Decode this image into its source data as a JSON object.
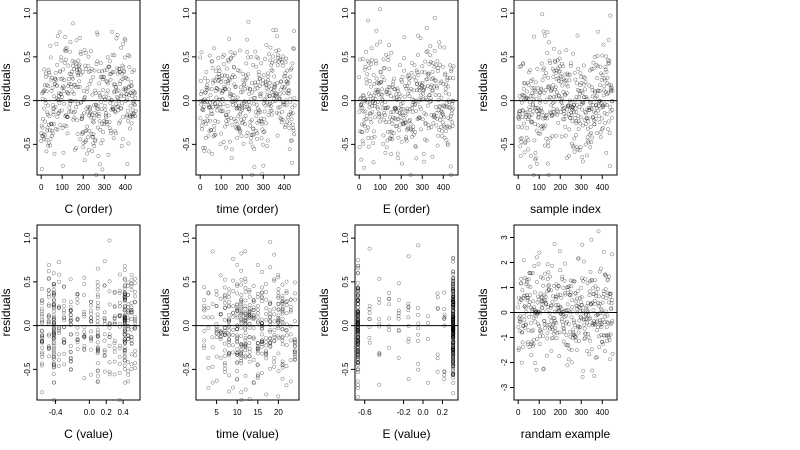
{
  "chart_data": [
    {
      "type": "scatter",
      "xlabel": "C (order)",
      "ylabel": "residuals",
      "xlim": [
        -20,
        470
      ],
      "ylim": [
        -0.85,
        1.15
      ],
      "xticks": [
        0,
        100,
        200,
        300,
        400
      ],
      "xtick_labels": [
        "0",
        "100",
        "200",
        "300",
        "400"
      ],
      "yticks": [
        -0.5,
        0.0,
        0.5,
        1.0
      ],
      "ytick_labels": [
        "-0.5",
        "0.0",
        "0.5",
        "1.0"
      ],
      "hline": 0,
      "points": {
        "kind": "order",
        "n": 450,
        "sd": 0.3,
        "seed": 11
      }
    },
    {
      "type": "scatter",
      "xlabel": "time (order)",
      "ylabel": "residuals",
      "xlim": [
        -20,
        470
      ],
      "ylim": [
        -0.85,
        1.15
      ],
      "xticks": [
        0,
        100,
        200,
        300,
        400
      ],
      "xtick_labels": [
        "0",
        "100",
        "200",
        "300",
        "400"
      ],
      "yticks": [
        -0.5,
        0.0,
        0.5,
        1.0
      ],
      "ytick_labels": [
        "-0.5",
        "0.0",
        "0.5",
        "1.0"
      ],
      "hline": 0,
      "points": {
        "kind": "order",
        "n": 450,
        "sd": 0.3,
        "seed": 23
      }
    },
    {
      "type": "scatter",
      "xlabel": "E (order)",
      "ylabel": "residuals",
      "xlim": [
        -20,
        470
      ],
      "ylim": [
        -0.85,
        1.15
      ],
      "xticks": [
        0,
        100,
        200,
        300,
        400
      ],
      "xtick_labels": [
        "0",
        "100",
        "200",
        "300",
        "400"
      ],
      "yticks": [
        -0.5,
        0.0,
        0.5,
        1.0
      ],
      "ytick_labels": [
        "-0.5",
        "0.0",
        "0.5",
        "1.0"
      ],
      "hline": 0,
      "points": {
        "kind": "order",
        "n": 450,
        "sd": 0.3,
        "seed": 37
      }
    },
    {
      "type": "scatter",
      "xlabel": "sample index",
      "ylabel": "residuals",
      "xlim": [
        -20,
        470
      ],
      "ylim": [
        -0.85,
        1.15
      ],
      "xticks": [
        0,
        100,
        200,
        300,
        400
      ],
      "xtick_labels": [
        "0",
        "100",
        "200",
        "300",
        "400"
      ],
      "yticks": [
        -0.5,
        0.0,
        0.5,
        1.0
      ],
      "ytick_labels": [
        "-0.5",
        "0.0",
        "0.5",
        "1.0"
      ],
      "hline": 0,
      "points": {
        "kind": "order",
        "n": 450,
        "sd": 0.3,
        "seed": 41
      }
    },
    {
      "type": "scatter",
      "xlabel": "C (value)",
      "ylabel": "residuals",
      "xlim": [
        -0.62,
        0.6
      ],
      "ylim": [
        -0.85,
        1.15
      ],
      "xticks": [
        -0.4,
        0.0,
        0.2,
        0.4
      ],
      "xtick_labels": [
        "-0.4",
        "0.0",
        "0.2",
        "0.4"
      ],
      "yticks": [
        -0.5,
        0.0,
        0.5,
        1.0
      ],
      "ytick_labels": [
        "-0.5",
        "0.0",
        "0.5",
        "1.0"
      ],
      "hline": 0,
      "points": {
        "kind": "value",
        "n": 450,
        "sd": 0.3,
        "seed": 53,
        "x_values": [
          -0.56,
          -0.48,
          -0.42,
          -0.36,
          -0.3,
          -0.22,
          -0.14,
          -0.06,
          0.02,
          0.1,
          0.18,
          0.24,
          0.3,
          0.36,
          0.42,
          0.46,
          0.5,
          0.54
        ],
        "x_weights": [
          4,
          3,
          12,
          3,
          4,
          3,
          3,
          4,
          4,
          4,
          3,
          3,
          3,
          4,
          12,
          3,
          4,
          3
        ]
      }
    },
    {
      "type": "scatter",
      "xlabel": "time (value)",
      "ylabel": "residuals",
      "xlim": [
        0,
        25
      ],
      "ylim": [
        -0.85,
        1.15
      ],
      "xticks": [
        5,
        10,
        15,
        20
      ],
      "xtick_labels": [
        "5",
        "10",
        "15",
        "20"
      ],
      "yticks": [
        -0.5,
        0.0,
        0.5,
        1.0
      ],
      "ytick_labels": [
        "-0.5",
        "0.0",
        "0.5",
        "1.0"
      ],
      "hline": 0,
      "points": {
        "kind": "value",
        "n": 450,
        "sd": 0.3,
        "seed": 67,
        "x_values": [
          2,
          3,
          4,
          5,
          6,
          7,
          8,
          9,
          10,
          11,
          12,
          13,
          14,
          15,
          16,
          17,
          18,
          19,
          20,
          21,
          22,
          23,
          24
        ],
        "x_weights": [
          2,
          3,
          2,
          3,
          4,
          5,
          6,
          5,
          8,
          10,
          8,
          5,
          4,
          5,
          4,
          3,
          4,
          3,
          4,
          5,
          3,
          3,
          3
        ]
      }
    },
    {
      "type": "scatter",
      "xlabel": "E (value)",
      "ylabel": "residuals",
      "xlim": [
        -0.7,
        0.36
      ],
      "ylim": [
        -0.85,
        1.15
      ],
      "xticks": [
        -0.6,
        -0.2,
        0.0,
        0.2
      ],
      "xtick_labels": [
        "-0.6",
        "-0.2",
        "0.0",
        "0.2"
      ],
      "yticks": [
        -0.5,
        0.0,
        0.5,
        1.0
      ],
      "ytick_labels": [
        "-0.5",
        "0.0",
        "0.5",
        "1.0"
      ],
      "hline": 0,
      "points": {
        "kind": "value",
        "n": 450,
        "sd": 0.3,
        "seed": 79,
        "x_values": [
          -0.67,
          -0.55,
          -0.45,
          -0.35,
          -0.25,
          -0.15,
          -0.05,
          0.05,
          0.15,
          0.22,
          0.31
        ],
        "x_weights": [
          30,
          2,
          2,
          2,
          2,
          2,
          2,
          2,
          2,
          3,
          55
        ]
      }
    },
    {
      "type": "scatter",
      "xlabel": "randam example",
      "ylabel": "residuals",
      "xlim": [
        -20,
        470
      ],
      "ylim": [
        -3.5,
        3.5
      ],
      "xticks": [
        0,
        100,
        200,
        300,
        400
      ],
      "xtick_labels": [
        "0",
        "100",
        "200",
        "300",
        "400"
      ],
      "yticks": [
        -3,
        -2,
        -1,
        0,
        1,
        2,
        3
      ],
      "ytick_labels": [
        "-3",
        "-2",
        "-1",
        "0",
        "1",
        "2",
        "3"
      ],
      "hline": 0,
      "points": {
        "kind": "order",
        "n": 450,
        "sd": 1.0,
        "seed": 97
      }
    }
  ]
}
